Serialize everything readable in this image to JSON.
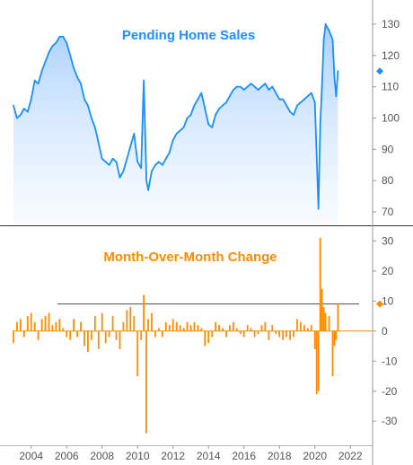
{
  "chart_data": [
    {
      "type": "area",
      "title": "Pending Home Sales",
      "ylim": [
        66,
        136
      ],
      "y_ticks": [
        70,
        80,
        90,
        100,
        110,
        120,
        130
      ],
      "line_color": "#1a8fff",
      "fill_color": "#cfe6ff",
      "latest_marker": 115,
      "x": [
        2003.0,
        2003.2,
        2003.4,
        2003.6,
        2003.8,
        2004.0,
        2004.2,
        2004.4,
        2004.6,
        2004.8,
        2005.0,
        2005.2,
        2005.4,
        2005.6,
        2005.8,
        2006.0,
        2006.2,
        2006.4,
        2006.6,
        2006.8,
        2007.0,
        2007.2,
        2007.4,
        2007.6,
        2007.8,
        2008.0,
        2008.2,
        2008.4,
        2008.6,
        2008.8,
        2009.0,
        2009.2,
        2009.4,
        2009.6,
        2009.8,
        2010.0,
        2010.2,
        2010.35,
        2010.5,
        2010.6,
        2010.8,
        2011.0,
        2011.2,
        2011.4,
        2011.6,
        2011.8,
        2012.0,
        2012.2,
        2012.4,
        2012.6,
        2012.8,
        2013.0,
        2013.2,
        2013.4,
        2013.6,
        2013.8,
        2014.0,
        2014.2,
        2014.4,
        2014.6,
        2014.8,
        2015.0,
        2015.2,
        2015.4,
        2015.6,
        2015.8,
        2016.0,
        2016.2,
        2016.4,
        2016.6,
        2016.8,
        2017.0,
        2017.2,
        2017.4,
        2017.6,
        2017.8,
        2018.0,
        2018.2,
        2018.4,
        2018.6,
        2018.8,
        2019.0,
        2019.2,
        2019.4,
        2019.6,
        2019.8,
        2020.0,
        2020.1,
        2020.2,
        2020.3,
        2020.4,
        2020.5,
        2020.6,
        2020.8,
        2021.0,
        2021.1,
        2021.2,
        2021.3
      ],
      "values": [
        104,
        100,
        101,
        103,
        102,
        106,
        112,
        111,
        115,
        118,
        121,
        123,
        124,
        126,
        126,
        124,
        120,
        116,
        113,
        111,
        106,
        104,
        100,
        97,
        92,
        87,
        86,
        85,
        87,
        86,
        81,
        83,
        87,
        91,
        95,
        86,
        84,
        112,
        80,
        77,
        83,
        85,
        86,
        85,
        87,
        89,
        93,
        95,
        96,
        97,
        100,
        101,
        104,
        106,
        108,
        103,
        98,
        97,
        101,
        103,
        104,
        105,
        107,
        109,
        110,
        110,
        109,
        110,
        111,
        110,
        109,
        110,
        111,
        109,
        110,
        108,
        106,
        106,
        104,
        102,
        101,
        104,
        105,
        106,
        107,
        108,
        105,
        88,
        71,
        98,
        110,
        125,
        130,
        128,
        125,
        113,
        107,
        115
      ]
    },
    {
      "type": "bar",
      "title": "Month-Over-Month Change",
      "ylim": [
        -38,
        34
      ],
      "y_ticks": [
        -30,
        -20,
        -10,
        0,
        10,
        20,
        30
      ],
      "bar_color": "#ff8c00",
      "reference_line": 9,
      "latest_marker": 9,
      "x_ticks": [
        2004,
        2006,
        2008,
        2010,
        2012,
        2014,
        2016,
        2018,
        2020,
        2022
      ],
      "x_range": [
        2002.95,
        2022.9
      ],
      "x": [
        2003.0,
        2003.2,
        2003.4,
        2003.6,
        2003.8,
        2004.0,
        2004.2,
        2004.4,
        2004.6,
        2004.8,
        2005.0,
        2005.2,
        2005.4,
        2005.6,
        2005.8,
        2006.0,
        2006.2,
        2006.4,
        2006.6,
        2006.8,
        2007.0,
        2007.2,
        2007.4,
        2007.6,
        2007.8,
        2008.0,
        2008.2,
        2008.4,
        2008.6,
        2008.8,
        2009.0,
        2009.2,
        2009.4,
        2009.6,
        2009.8,
        2010.0,
        2010.2,
        2010.35,
        2010.5,
        2010.6,
        2010.8,
        2011.0,
        2011.2,
        2011.4,
        2011.6,
        2011.8,
        2012.0,
        2012.2,
        2012.4,
        2012.6,
        2012.8,
        2013.0,
        2013.2,
        2013.4,
        2013.6,
        2013.8,
        2014.0,
        2014.2,
        2014.4,
        2014.6,
        2014.8,
        2015.0,
        2015.2,
        2015.4,
        2015.6,
        2015.8,
        2016.0,
        2016.2,
        2016.4,
        2016.6,
        2016.8,
        2017.0,
        2017.2,
        2017.4,
        2017.6,
        2017.8,
        2018.0,
        2018.2,
        2018.4,
        2018.6,
        2018.8,
        2019.0,
        2019.2,
        2019.4,
        2019.6,
        2019.8,
        2020.0,
        2020.1,
        2020.2,
        2020.3,
        2020.4,
        2020.5,
        2020.6,
        2020.8,
        2021.0,
        2021.1,
        2021.2,
        2021.3
      ],
      "values": [
        -4,
        3,
        4,
        -2,
        5,
        6,
        3,
        -3,
        4,
        5,
        6,
        2,
        3,
        4,
        1,
        -2,
        -3,
        4,
        -2,
        3,
        -5,
        -7,
        -3,
        5,
        -6,
        6,
        -4,
        -2,
        5,
        -3,
        -6,
        3,
        7,
        8,
        5,
        -15,
        -3,
        12,
        -34,
        4,
        6,
        -2,
        1,
        -2,
        3,
        2,
        4,
        3,
        2,
        1,
        3,
        2,
        3,
        2,
        1,
        -5,
        -4,
        -2,
        3,
        2,
        1,
        -2,
        2,
        3,
        1,
        -1,
        -2,
        2,
        1,
        -2,
        -1,
        2,
        3,
        -3,
        2,
        -1,
        -2,
        -3,
        -2,
        -3,
        -2,
        4,
        3,
        2,
        1,
        2,
        -6,
        -21,
        -20,
        31,
        14,
        8,
        6,
        5,
        -15,
        -5,
        -3,
        9
      ]
    }
  ]
}
